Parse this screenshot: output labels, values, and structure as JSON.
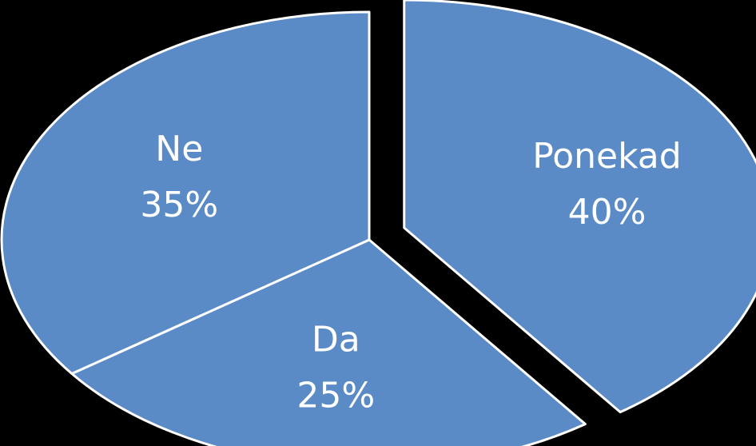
{
  "chart_data": {
    "type": "pie",
    "categories": [
      "Ponekad",
      "Da",
      "Ne"
    ],
    "values": [
      40,
      25,
      35
    ],
    "value_labels": [
      "40%",
      "25%",
      "35%"
    ],
    "color": "#5b8bc6"
  }
}
